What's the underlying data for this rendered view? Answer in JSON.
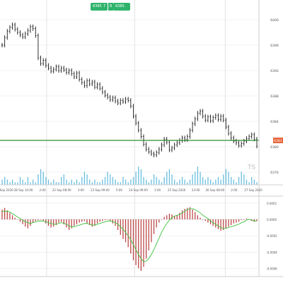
{
  "toolbar": {
    "quote_left": "6385.",
    "quote_sep": "7",
    "quote_mid": "8",
    "quote_right": "6385."
  },
  "colors": {
    "price_line": "#1a1a1a",
    "current_price_line": "#2e8b2e",
    "price_label_bg": "#e8643c",
    "volume": "#4fb3d9",
    "macd_bar": "#b83a3a",
    "signal_line": "#3ec23e",
    "grid": "#e2e2e2",
    "badge": "#2eb36b"
  },
  "chart_data": [
    {
      "type": "line",
      "panel": "price",
      "current_price": "6381",
      "watermark": "TS",
      "y_ticks": [
        "6400",
        "6396",
        "6392",
        "6388",
        "6384",
        "6380",
        "6376"
      ],
      "x_ticks": [
        "24 Sep 2020",
        "28 Sep 10:00",
        "2:00",
        "22 Sep 08:00",
        "3:00",
        "23 Sep 09:00",
        "5:00",
        "24 Sep 09:00",
        "1:00",
        "25 Sep 2020",
        "23:00",
        "26 Sep 08:00",
        "2:00",
        "27 Sep 2020"
      ],
      "ylim": [
        6374,
        6402
      ],
      "y": [
        6396,
        6397.2,
        6398.2,
        6398.8,
        6399.2,
        6398.5,
        6398.0,
        6397.6,
        6397.3,
        6397.8,
        6398.3,
        6398.9,
        6398.6,
        6397.5,
        6394.0,
        6393.1,
        6393.6,
        6392.8,
        6392.4,
        6391.9,
        6392.2,
        6392.6,
        6392.0,
        6392.4,
        6392.1,
        6391.7,
        6392.0,
        6391.5,
        6391.0,
        6391.6,
        6390.6,
        6390.1,
        6389.6,
        6390.4,
        6389.9,
        6390.2,
        6389.4,
        6389.8,
        6389.2,
        6388.6,
        6388.1,
        6387.8,
        6387.4,
        6387.7,
        6387.2,
        6386.9,
        6387.3,
        6387.1,
        6387.5,
        6387.3,
        6386.4,
        6384.8,
        6383.7,
        6382.6,
        6381.6,
        6380.4,
        6379.6,
        6379.2,
        6378.9,
        6378.7,
        6379.1,
        6379.6,
        6380.3,
        6381.2,
        6380.7,
        6379.5,
        6379.8,
        6380.3,
        6380.6,
        6381.0,
        6381.4,
        6381.1,
        6381.6,
        6382.6,
        6383.6,
        6384.4,
        6385.3,
        6385.6,
        6384.8,
        6384.2,
        6384.7,
        6384.1,
        6384.6,
        6384.9,
        6384.3,
        6384.8,
        6384.2,
        6383.1,
        6382.1,
        6381.4,
        6380.9,
        6380.6,
        6380.2,
        6380.5,
        6380.9,
        6381.3,
        6381.6,
        6381.9,
        6381.2,
        6380.1
      ]
    },
    {
      "type": "bar",
      "panel": "volume",
      "ylim": [
        0,
        10
      ],
      "values": [
        2,
        3,
        2,
        1,
        2,
        1,
        1,
        3,
        2,
        1,
        3,
        1,
        2,
        1,
        4,
        6,
        5,
        3,
        2,
        1,
        2,
        1,
        1,
        3,
        4,
        2,
        1,
        2,
        1,
        2,
        1,
        3,
        5,
        4,
        2,
        1,
        2,
        1,
        1,
        2,
        3,
        5,
        4,
        3,
        2,
        1,
        1,
        3,
        2,
        1,
        2,
        3,
        5,
        7,
        6,
        3,
        2,
        1,
        2,
        4,
        3,
        2,
        1,
        3,
        5,
        6,
        4,
        2,
        1,
        2,
        3,
        2,
        1,
        2,
        4,
        5,
        7,
        5,
        3,
        2,
        3,
        2,
        1,
        2,
        3,
        2,
        4,
        6,
        5,
        3,
        2,
        1,
        3,
        5,
        4,
        2,
        1,
        3,
        2,
        1
      ]
    },
    {
      "type": "bar",
      "panel": "macd",
      "y_ticks": [
        "0.0002",
        "0.0000",
        "-0.0002",
        "-0.0004",
        "-0.0006"
      ],
      "ylim": [
        -0.0007,
        0.00025
      ],
      "values": [
        0.00012,
        0.00014,
        0.00011,
        8e-05,
        5e-05,
        2e-05,
        0.0,
        -3e-05,
        -6e-05,
        -9e-05,
        -0.00011,
        -8e-05,
        -4e-05,
        -2e-05,
        -1e-05,
        0.0,
        -2e-05,
        -5e-05,
        -8e-05,
        -0.0001,
        -9e-05,
        -7e-05,
        -4e-05,
        -3e-05,
        -6e-05,
        -0.0001,
        -0.00013,
        -0.00011,
        -8e-05,
        -6e-05,
        -4e-05,
        -3e-05,
        -2e-05,
        -5e-05,
        -7e-05,
        -9e-05,
        -8e-05,
        -5e-05,
        -3e-05,
        -2e-05,
        -1e-05,
        0.0,
        -2e-05,
        -5e-05,
        -8e-05,
        -0.00013,
        -0.00019,
        -0.00024,
        -0.00028,
        -0.00034,
        -0.00042,
        -0.0005,
        -0.00056,
        -0.0006,
        -0.00063,
        -0.00058,
        -0.00048,
        -0.00038,
        -0.00028,
        -0.00018,
        -0.0001,
        -4e-05,
        0.0,
        3e-05,
        5e-05,
        7e-05,
        6e-05,
        4e-05,
        5e-05,
        8e-05,
        0.00011,
        0.00013,
        0.00014,
        0.00015,
        0.00012,
        9e-05,
        5e-05,
        2e-05,
        0.0,
        -2e-05,
        -4e-05,
        -6e-05,
        -8e-05,
        -0.0001,
        -0.00012,
        -0.00014,
        -0.00013,
        -0.00011,
        -9e-05,
        -7e-05,
        -5e-05,
        -4e-05,
        -3e-05,
        -1e-05,
        0.0,
        1e-05,
        0.0,
        -2e-05,
        -3e-05,
        -2e-05
      ],
      "signal": [
        0.0001,
        0.0001,
        0.0001,
        9e-05,
        7e-05,
        5e-05,
        3e-05,
        1e-05,
        -1e-05,
        -3e-05,
        -4e-05,
        -5e-05,
        -4e-05,
        -3e-05,
        -2e-05,
        -2e-05,
        -2e-05,
        -3e-05,
        -4e-05,
        -5e-05,
        -6e-05,
        -6e-05,
        -5e-05,
        -4e-05,
        -5e-05,
        -6e-05,
        -8e-05,
        -9e-05,
        -9e-05,
        -8e-05,
        -7e-05,
        -6e-05,
        -5e-05,
        -5e-05,
        -6e-05,
        -7e-05,
        -7e-05,
        -6e-05,
        -5e-05,
        -4e-05,
        -3e-05,
        -2e-05,
        -2e-05,
        -3e-05,
        -4e-05,
        -6e-05,
        -9e-05,
        -0.00012,
        -0.00016,
        -0.0002,
        -0.00025,
        -0.00031,
        -0.00037,
        -0.00043,
        -0.00048,
        -0.00052,
        -0.00051,
        -0.00048,
        -0.00043,
        -0.00037,
        -0.0003,
        -0.00023,
        -0.00016,
        -0.0001,
        -5e-05,
        -1e-05,
        2e-05,
        4e-05,
        5e-05,
        6e-05,
        8e-05,
        0.0001,
        0.00012,
        0.00013,
        0.00013,
        0.00012,
        0.0001,
        8e-05,
        5e-05,
        3e-05,
        1e-05,
        -2e-05,
        -4e-05,
        -6e-05,
        -8e-05,
        -0.0001,
        -0.00011,
        -0.00011,
        -0.0001,
        -9e-05,
        -8e-05,
        -7e-05,
        -6e-05,
        -4e-05,
        -3e-05,
        -1e-05,
        0.0,
        -1e-05,
        -2e-05,
        -2e-05
      ]
    }
  ]
}
